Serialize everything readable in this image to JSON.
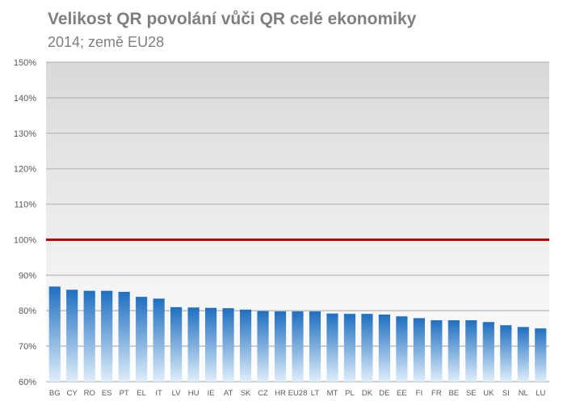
{
  "chart_data": {
    "type": "bar",
    "title": "Velikost QR povolání vůči QR celé ekonomiky",
    "subtitle": "2014; země EU28",
    "xlabel": "",
    "ylabel": "",
    "ylim": [
      60,
      150
    ],
    "yticks": [
      "60%",
      "70%",
      "80%",
      "90%",
      "100%",
      "110%",
      "120%",
      "130%",
      "140%",
      "150%"
    ],
    "grid": true,
    "reference_line": {
      "value": 100,
      "color": "#c00000"
    },
    "categories": [
      "BG",
      "CY",
      "RO",
      "ES",
      "PT",
      "EL",
      "IT",
      "LV",
      "HU",
      "IE",
      "AT",
      "SK",
      "CZ",
      "HR",
      "EU28",
      "LT",
      "MT",
      "PL",
      "DK",
      "DE",
      "EE",
      "FI",
      "FR",
      "BE",
      "SE",
      "UK",
      "SI",
      "NL",
      "LU"
    ],
    "values": [
      86.8,
      85.9,
      85.6,
      85.6,
      85.3,
      83.9,
      83.4,
      81.0,
      80.9,
      80.8,
      80.7,
      80.3,
      79.9,
      79.8,
      79.8,
      79.8,
      79.2,
      79.1,
      79.1,
      78.9,
      78.4,
      77.9,
      77.3,
      77.3,
      77.3,
      76.8,
      75.9,
      75.4,
      75.0
    ],
    "colors": {
      "bar_top": "#1f6fc0",
      "bar_bottom": "#dfeefa",
      "background_top": "#d9d9d9",
      "background_bottom": "#ffffff",
      "grid": "#bfbfbf"
    }
  }
}
